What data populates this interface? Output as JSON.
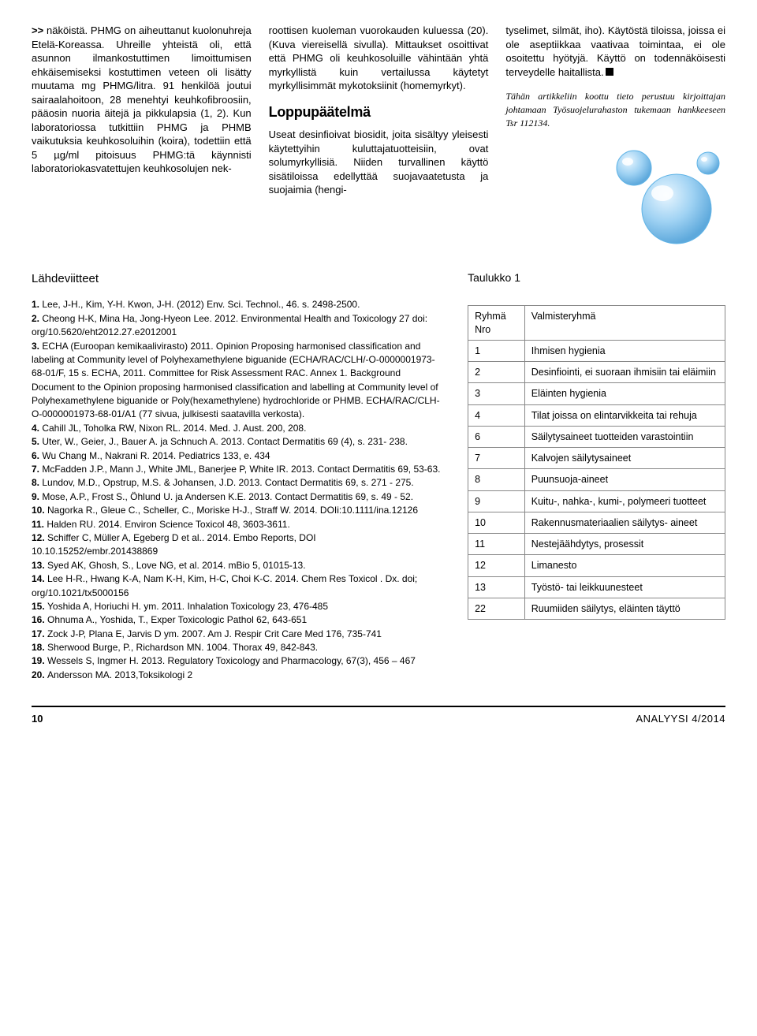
{
  "columns": {
    "col1": "näköistä. PHMG on aiheuttanut kuolonuhreja Etelä-Koreassa. Uhreille yhteistä oli, että asunnon ilmankostuttimen limoittumisen ehkäisemiseksi kostuttimen veteen oli lisätty muutama mg PHMG/litra. 91 henkilöä joutui sairaalahoitoon, 28 menehtyi keuhkofibroosiin, pääosin nuoria äitejä ja pikkulapsia (1, 2). Kun laboratoriossa tutkittiin PHMG ja PHMB vaikutuksia keuhkosoluihin (koira), todettiin että 5 µg/ml pitoisuus PHMG:tä käynnisti laboratoriokasvatettujen keuhkosolujen nek-",
    "col2_a": "roottisen kuoleman vuorokauden kuluessa (20). (Kuva viereisellä sivulla). Mittaukset osoittivat että PHMG oli keuhkosoluille vähintään yhtä myrkyllistä kuin vertailussa käytetyt myrkyllisimmät mykotoksiinit (homemyrkyt).",
    "subhead": "Loppupäätelmä",
    "col2_b": "Useat desinfioivat biosidit, joita sisältyy yleisesti käytettyihin kuluttajatuotteisiin, ovat solumyrkyllisiä. Niiden turvallinen käyttö sisätiloissa edellyttää suojavaatetusta ja suojaimia (hengi-",
    "col3_a": "tyselimet, silmät, iho). Käytöstä tiloissa, joissa ei ole aseptiikkaa vaativaa toimintaa, ei ole osoitettu hyötyjä. Käyttö on todennäköisesti terveydelle haitallista.",
    "note": "Tähän artikkeliin koottu tieto perustuu kirjoittajan johtamaan Työsuojelurahaston tukemaan hankkeeseen Tsr 112134."
  },
  "bubbles_svg": {
    "bg": "#ffffff",
    "bubble_fill": "#a8d6f0",
    "bubble_stroke": "#5fb3e6",
    "highlight": "#ffffff"
  },
  "references": {
    "title": "Lähdeviitteet",
    "items": [
      "Lee, J-H., Kim, Y-H. Kwon, J-H. (2012) Env. Sci. Technol., 46. s. 2498-2500.",
      "Cheong H-K, Mina Ha, Jong-Hyeon Lee. 2012. Environmental Health and Toxicology 27 doi: org/10.5620/eht2012.27.e2012001",
      "ECHA (Euroopan kemikaalivirasto) 2011. Opinion Proposing harmonised classification and labeling at Community level of Polyhexamethylene biguanide (ECHA/RAC/CLH/-O-0000001973-68-01/F, 15 s. ECHA, 2011. Committee for Risk Assessment RAC. Annex 1. Background Document to the Opinion proposing harmonised classification and labelling at Community level of Polyhexamethylene biguanide or Poly(hexamethylene) hydrochloride or PHMB. ECHA/RAC/CLH-O-0000001973-68-01/A1 (77 sivua, julkisesti saatavilla verkosta).",
      "Cahill JL, Toholka RW, Nixon RL. 2014. Med. J. Aust. 200, 208.",
      "Uter, W., Geier, J., Bauer A. ja Schnuch A. 2013. Contact Dermatitis 69 (4), s. 231- 238.",
      "Wu Chang M., Nakrani R. 2014. Pediatrics 133, e. 434",
      "McFadden J.P., Mann J., White JML, Banerjee P, White IR. 2013. Contact Dermatitis 69, 53-63.",
      "Lundov, M.D., Opstrup, M.S. & Johansen, J.D. 2013. Contact Dermatitis 69, s. 271 - 275.",
      "Mose, A.P., Frost S., Öhlund U. ja Andersen K.E. 2013. Contact Dermatitis 69, s. 49 - 52.",
      "Nagorka R., Gleue C., Scheller, C., Moriske H-J., Straff W. 2014. DOIi:10.1111/ina.12126",
      "Halden RU. 2014. Environ Science Toxicol 48, 3603-3611.",
      "Schiffer C, Müller A, Egeberg D et al.. 2014. Embo Reports, DOI 10.10.15252/embr.201438869",
      "Syed AK, Ghosh, S., Love NG, et al. 2014. mBio 5, 01015-13.",
      "Lee H-R., Hwang K-A, Nam K-H, Kim, H-C, Choi K-C. 2014. Chem Res Toxicol . Dx. doi; org/10.1021/tx5000156",
      "Yoshida A, Horiuchi H. ym. 2011. Inhalation Toxicology 23, 476-485",
      "Ohnuma A., Yoshida, T., Exper Toxicologic Pathol 62, 643-651",
      "Zock J-P, Plana E, Jarvis D ym. 2007. Am J. Respir Crit Care Med 176, 735-741",
      "Sherwood Burge, P., Richardson MN. 1004. Thorax 49, 842-843.",
      "Wessels S, Ingmer H. 2013. Regulatory Toxicology and Pharmacology, 67(3), 456 – 467",
      "Andersson MA. 2013,Toksikologi 2"
    ]
  },
  "table": {
    "title": "Taulukko 1",
    "head": [
      "Ryhmä Nro",
      "Valmisteryhmä"
    ],
    "col_widths": [
      "22%",
      "78%"
    ],
    "rows": [
      [
        "1",
        "Ihmisen hygienia"
      ],
      [
        "2",
        "Desinfiointi, ei suoraan ihmisiin tai eläimiin"
      ],
      [
        "3",
        "Eläinten hygienia"
      ],
      [
        "4",
        "Tilat joissa on elintarvikkeita tai rehuja"
      ],
      [
        "6",
        "Säilytysaineet tuotteiden varastointiin"
      ],
      [
        "7",
        "Kalvojen säilytysaineet"
      ],
      [
        "8",
        "Puunsuoja-aineet"
      ],
      [
        "9",
        "Kuitu-, nahka-, kumi-, polymeeri tuotteet"
      ],
      [
        "10",
        "Rakennusmateriaalien säilytys- aineet"
      ],
      [
        "11",
        "Nestejäähdytys, prosessit"
      ],
      [
        "12",
        "Limanesto"
      ],
      [
        "13",
        "Työstö- tai leikkuunesteet"
      ],
      [
        "22",
        "Ruumiiden säilytys, eläinten täyttö"
      ]
    ]
  },
  "footer": {
    "page": "10",
    "issue": "ANALYYSI 4/2014"
  }
}
